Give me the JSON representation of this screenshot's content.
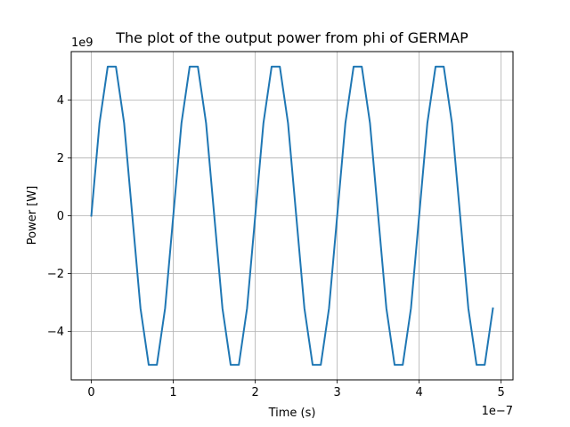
{
  "chart_data": {
    "type": "line",
    "title": "The plot of the output power from phi of GERMAP",
    "xlabel": "Time (s)",
    "ylabel": "Power [W]",
    "x_offset_text": "1e−7",
    "y_offset_text": "1e9",
    "x_scale_factor": 1e-07,
    "y_scale_factor": 1000000000.0,
    "xlim": [
      -0.245,
      5.145
    ],
    "ylim": [
      -5.67,
      5.67
    ],
    "x_ticks": [
      0,
      1,
      2,
      3,
      4,
      5
    ],
    "x_tick_labels": [
      "0",
      "1",
      "2",
      "3",
      "4",
      "5"
    ],
    "y_ticks": [
      -4,
      -2,
      0,
      2,
      4
    ],
    "y_tick_labels": [
      "−4",
      "−2",
      "0",
      "2",
      "4"
    ],
    "grid": true,
    "legend": "none",
    "colors": {
      "series": "#1f77b4",
      "grid": "#b0b0b0",
      "axes": "#000000"
    },
    "series": [
      {
        "x": [
          0,
          0.1,
          0.2,
          0.3,
          0.4,
          0.5,
          0.6,
          0.7,
          0.8,
          0.9,
          1.0,
          1.1,
          1.2,
          1.3,
          1.4,
          1.5,
          1.6,
          1.7,
          1.8,
          1.9,
          2.0,
          2.1,
          2.2,
          2.3,
          2.4,
          2.5,
          2.6,
          2.7,
          2.8,
          2.9,
          3.0,
          3.1,
          3.2,
          3.3,
          3.4,
          3.5,
          3.6,
          3.7,
          3.8,
          3.9,
          4.0,
          4.1,
          4.2,
          4.3,
          4.4,
          4.5,
          4.6,
          4.7,
          4.8,
          4.9
        ],
        "values": [
          0,
          3.2,
          5.15,
          5.15,
          3.2,
          0,
          -3.2,
          -5.15,
          -5.15,
          -3.2,
          0,
          3.2,
          5.15,
          5.15,
          3.2,
          0,
          -3.2,
          -5.15,
          -5.15,
          -3.2,
          0,
          3.2,
          5.15,
          5.15,
          3.2,
          0,
          -3.2,
          -5.15,
          -5.15,
          -3.2,
          0,
          3.2,
          5.15,
          5.15,
          3.2,
          0,
          -3.2,
          -5.15,
          -5.15,
          -3.2,
          0,
          3.2,
          5.15,
          5.15,
          3.2,
          0,
          -3.2,
          -5.15,
          -5.15,
          -3.2
        ]
      }
    ]
  }
}
